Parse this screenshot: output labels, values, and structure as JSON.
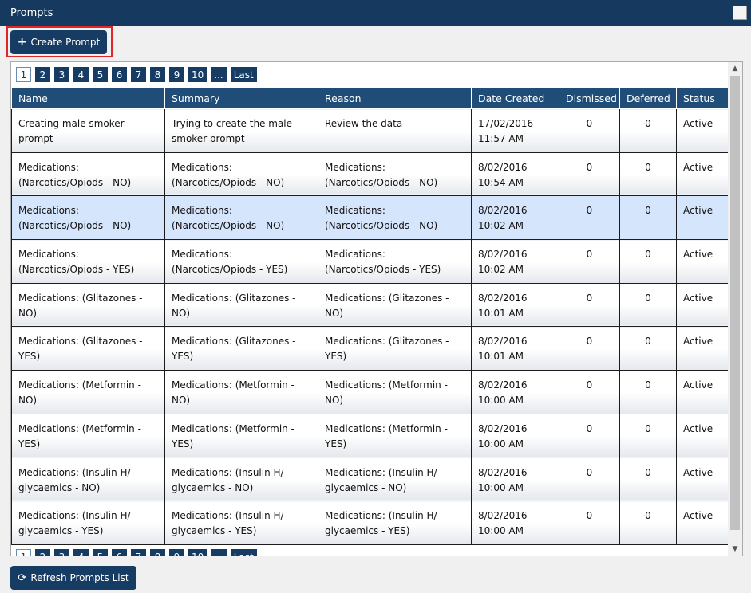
{
  "header": {
    "title": "Prompts"
  },
  "toolbar": {
    "create_button": "Create Prompt"
  },
  "pager": [
    "1",
    "2",
    "3",
    "4",
    "5",
    "6",
    "7",
    "8",
    "9",
    "10",
    "...",
    "Last"
  ],
  "table": {
    "columns": [
      "Name",
      "Summary",
      "Reason",
      "Date Created",
      "Dismissed",
      "Deferred",
      "Status"
    ],
    "rows": [
      [
        "Creating male smoker prompt",
        "Trying to create the male smoker prompt",
        "Review the data",
        "17/02/2016 11:57 AM",
        0,
        0,
        "Active"
      ],
      [
        "Medications: (Narcotics/Opiods - NO)",
        "Medications: (Narcotics/Opiods - NO)",
        "Medications: (Narcotics/Opiods - NO)",
        "8/02/2016 10:54 AM",
        0,
        0,
        "Active"
      ],
      [
        "Medications: (Narcotics/Opiods - NO)",
        "Medications: (Narcotics/Opiods - NO)",
        "Medications: (Narcotics/Opiods - NO)",
        "8/02/2016 10:02 AM",
        0,
        0,
        "Active"
      ],
      [
        "Medications: (Narcotics/Opiods - YES)",
        "Medications: (Narcotics/Opiods - YES)",
        "Medications: (Narcotics/Opiods - YES)",
        "8/02/2016 10:02 AM",
        0,
        0,
        "Active"
      ],
      [
        "Medications: (Glitazones - NO)",
        "Medications: (Glitazones - NO)",
        "Medications: (Glitazones - NO)",
        "8/02/2016 10:01 AM",
        0,
        0,
        "Active"
      ],
      [
        "Medications: (Glitazones - YES)",
        "Medications: (Glitazones - YES)",
        "Medications: (Glitazones - YES)",
        "8/02/2016 10:01 AM",
        0,
        0,
        "Active"
      ],
      [
        "Medications: (Metformin - NO)",
        "Medications: (Metformin - NO)",
        "Medications: (Metformin - NO)",
        "8/02/2016 10:00 AM",
        0,
        0,
        "Active"
      ],
      [
        "Medications: (Metformin - YES)",
        "Medications: (Metformin - YES)",
        "Medications: (Metformin - YES)",
        "8/02/2016 10:00 AM",
        0,
        0,
        "Active"
      ],
      [
        "Medications: (Insulin H/ glycaemics - NO)",
        "Medications: (Insulin H/ glycaemics - NO)",
        "Medications: (Insulin H/ glycaemics - NO)",
        "8/02/2016 10:00 AM",
        0,
        0,
        "Active"
      ],
      [
        "Medications: (Insulin H/ glycaemics - YES)",
        "Medications: (Insulin H/ glycaemics - YES)",
        "Medications: (Insulin H/ glycaemics - YES)",
        "8/02/2016 10:00 AM",
        0,
        0,
        "Active"
      ]
    ],
    "selected_row": 2
  },
  "footer": {
    "refresh_button": "Refresh Prompts List"
  }
}
